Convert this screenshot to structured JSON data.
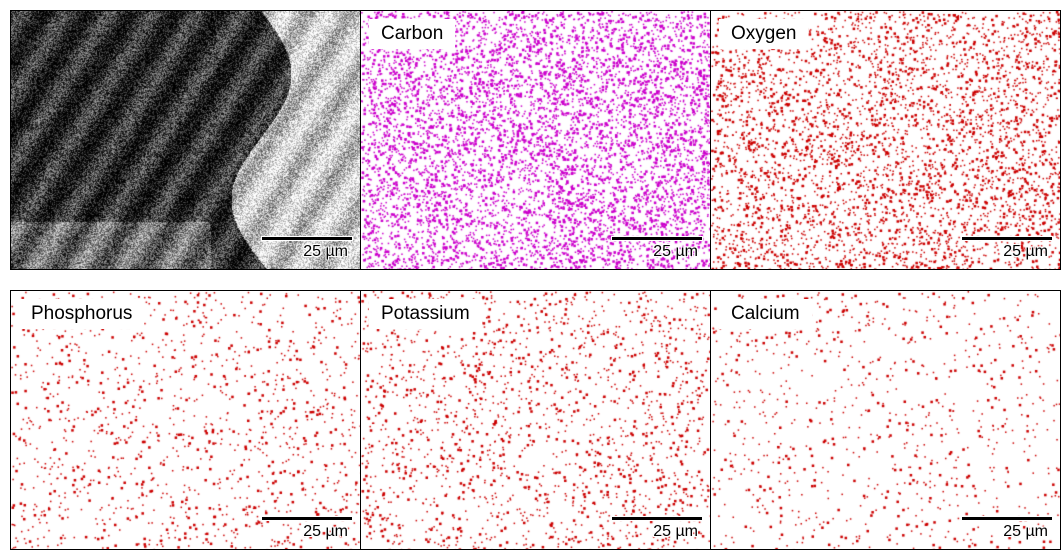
{
  "scale_bar": "25 µm",
  "panels": [
    {
      "id": "sem",
      "label": "",
      "color": "#000000",
      "density": 0
    },
    {
      "id": "carbon",
      "label": "Carbon",
      "color": "#cc00cc",
      "density": 0.9
    },
    {
      "id": "oxygen",
      "label": "Oxygen",
      "color": "#cc0000",
      "density": 0.55
    },
    {
      "id": "phosphorus",
      "label": "Phosphorus",
      "color": "#cc0000",
      "density": 0.18
    },
    {
      "id": "potassium",
      "label": "Potassium",
      "color": "#cc0000",
      "density": 0.25
    },
    {
      "id": "calcium",
      "label": "Calcium",
      "color": "#cc0000",
      "density": 0.12
    }
  ]
}
